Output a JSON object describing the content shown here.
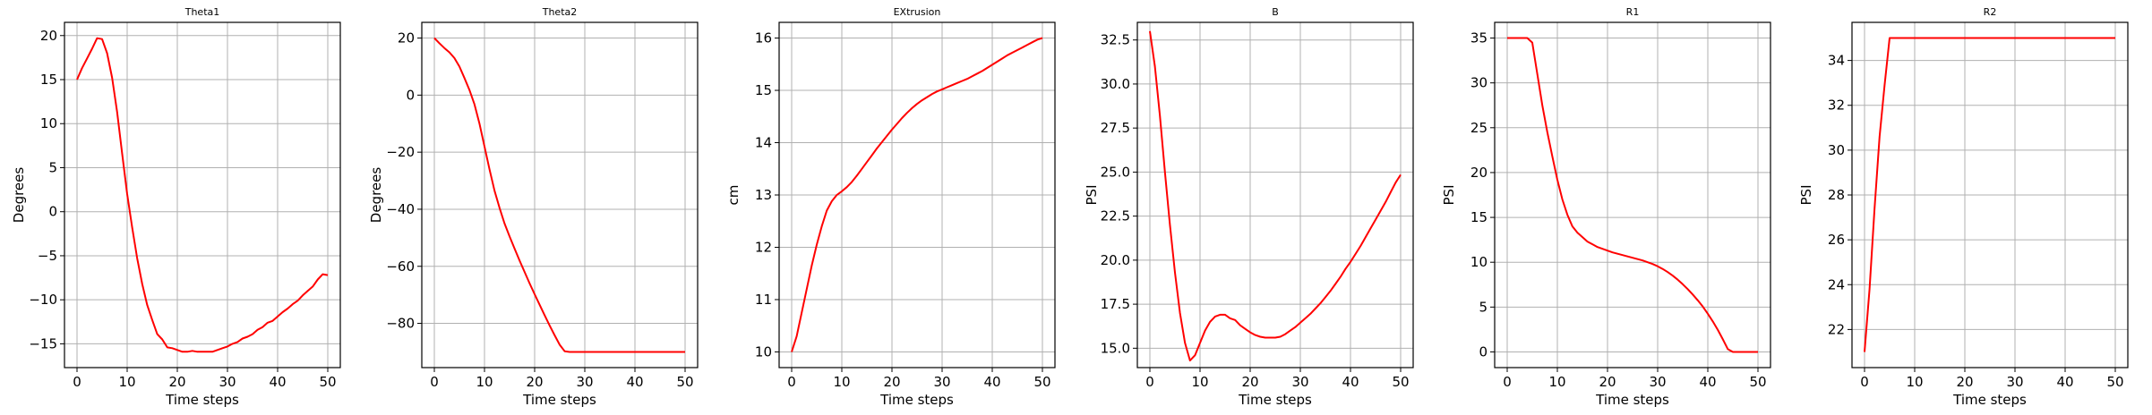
{
  "figure": {
    "line_color": "#ff0000",
    "grid_color": "#b0b0b0"
  },
  "chart_data": [
    {
      "type": "line",
      "title": "Theta1",
      "xlabel": "Time steps",
      "ylabel": "Degrees",
      "xlim": [
        -2.5,
        52.5
      ],
      "ylim": [
        -17.7,
        21.5
      ],
      "xticks": [
        0,
        10,
        20,
        30,
        40,
        50
      ],
      "yticks": [
        -15,
        -10,
        -5,
        0,
        5,
        10,
        15,
        20
      ],
      "grid": true,
      "series": [
        {
          "x": [
            0,
            1,
            2,
            3,
            4,
            5,
            6,
            7,
            8,
            9,
            10,
            11,
            12,
            13,
            14,
            15,
            16,
            17,
            18,
            19,
            20,
            21,
            22,
            23,
            24,
            25,
            26,
            27,
            28,
            29,
            30,
            31,
            32,
            33,
            34,
            35,
            36,
            37,
            38,
            39,
            40,
            41,
            42,
            43,
            44,
            45,
            46,
            47,
            48,
            49,
            50
          ],
          "y": [
            15,
            16.3,
            17.4,
            18.5,
            19.7,
            19.6,
            18.0,
            15.2,
            11.3,
            6.6,
            2.0,
            -1.8,
            -5.3,
            -8.2,
            -10.6,
            -12.3,
            -13.9,
            -14.5,
            -15.4,
            -15.5,
            -15.7,
            -15.9,
            -15.9,
            -15.8,
            -15.9,
            -15.9,
            -15.9,
            -15.9,
            -15.7,
            -15.5,
            -15.3,
            -15.0,
            -14.8,
            -14.4,
            -14.2,
            -13.9,
            -13.4,
            -13.1,
            -12.6,
            -12.4,
            -11.9,
            -11.4,
            -11.0,
            -10.5,
            -10.1,
            -9.5,
            -9.0,
            -8.5,
            -7.7,
            -7.1,
            -7.2
          ]
        }
      ]
    },
    {
      "type": "line",
      "title": "Theta2",
      "xlabel": "Time steps",
      "ylabel": "Degrees",
      "xlim": [
        -2.5,
        52.5
      ],
      "ylim": [
        -95.5,
        25.5
      ],
      "xticks": [
        0,
        10,
        20,
        30,
        40,
        50
      ],
      "yticks": [
        -80,
        -60,
        -40,
        -20,
        0,
        20
      ],
      "grid": true,
      "series": [
        {
          "x": [
            0,
            1,
            2,
            3,
            4,
            5,
            6,
            7,
            8,
            9,
            10,
            11,
            12,
            13,
            14,
            15,
            16,
            17,
            18,
            19,
            20,
            21,
            22,
            23,
            24,
            25,
            26,
            27,
            28,
            29,
            30,
            31,
            32,
            33,
            34,
            35,
            36,
            37,
            38,
            39,
            40,
            41,
            42,
            43,
            44,
            45,
            46,
            47,
            48,
            49,
            50
          ],
          "y": [
            20,
            18.2,
            16.5,
            15.0,
            13.0,
            10.0,
            6.0,
            1.8,
            -3.2,
            -10.0,
            -18.0,
            -26.0,
            -33.5,
            -39.5,
            -45.0,
            -49.5,
            -53.8,
            -58.0,
            -62.0,
            -66.0,
            -69.8,
            -73.5,
            -77.2,
            -80.8,
            -84.2,
            -87.5,
            -89.8,
            -90,
            -90,
            -90,
            -90,
            -90,
            -90,
            -90,
            -90,
            -90,
            -90,
            -90,
            -90,
            -90,
            -90,
            -90,
            -90,
            -90,
            -90,
            -90,
            -90,
            -90,
            -90,
            -90,
            -90
          ]
        }
      ]
    },
    {
      "type": "line",
      "title": "EXtrusion",
      "xlabel": "Time steps",
      "ylabel": "cm",
      "xlim": [
        -2.5,
        52.5
      ],
      "ylim": [
        9.7,
        16.3
      ],
      "xticks": [
        0,
        10,
        20,
        30,
        40,
        50
      ],
      "yticks": [
        10,
        11,
        12,
        13,
        14,
        15,
        16
      ],
      "grid": true,
      "series": [
        {
          "x": [
            0,
            1,
            2,
            3,
            4,
            5,
            6,
            7,
            8,
            9,
            10,
            11,
            12,
            13,
            14,
            15,
            16,
            17,
            18,
            19,
            20,
            21,
            22,
            23,
            24,
            25,
            26,
            27,
            28,
            29,
            30,
            31,
            32,
            33,
            34,
            35,
            36,
            37,
            38,
            39,
            40,
            41,
            42,
            43,
            44,
            45,
            46,
            47,
            48,
            49,
            50
          ],
          "y": [
            10.0,
            10.3,
            10.75,
            11.2,
            11.65,
            12.05,
            12.4,
            12.7,
            12.88,
            13.0,
            13.07,
            13.15,
            13.25,
            13.37,
            13.5,
            13.63,
            13.76,
            13.89,
            14.01,
            14.13,
            14.25,
            14.36,
            14.47,
            14.57,
            14.66,
            14.74,
            14.81,
            14.87,
            14.93,
            14.98,
            15.02,
            15.06,
            15.1,
            15.14,
            15.18,
            15.22,
            15.27,
            15.32,
            15.37,
            15.43,
            15.49,
            15.55,
            15.61,
            15.67,
            15.72,
            15.77,
            15.82,
            15.87,
            15.92,
            15.97,
            16.0
          ]
        }
      ]
    },
    {
      "type": "line",
      "title": "B",
      "xlabel": "Time steps",
      "ylabel": "PSI",
      "xlim": [
        -2.5,
        52.5
      ],
      "ylim": [
        13.9,
        33.5
      ],
      "xticks": [
        0,
        10,
        20,
        30,
        40,
        50
      ],
      "yticks": [
        15.0,
        17.5,
        20.0,
        22.5,
        25.0,
        27.5,
        30.0,
        32.5
      ],
      "grid": true,
      "series": [
        {
          "x": [
            0,
            1,
            2,
            3,
            4,
            5,
            6,
            7,
            8,
            9,
            10,
            11,
            12,
            13,
            14,
            15,
            16,
            17,
            18,
            19,
            20,
            21,
            22,
            23,
            24,
            25,
            26,
            27,
            28,
            29,
            30,
            31,
            32,
            33,
            34,
            35,
            36,
            37,
            38,
            39,
            40,
            41,
            42,
            43,
            44,
            45,
            46,
            47,
            48,
            49,
            50
          ],
          "y": [
            33.0,
            31.0,
            28.2,
            25.0,
            22.0,
            19.3,
            17.0,
            15.3,
            14.3,
            14.6,
            15.3,
            16.0,
            16.5,
            16.8,
            16.9,
            16.9,
            16.7,
            16.6,
            16.3,
            16.1,
            15.9,
            15.75,
            15.65,
            15.6,
            15.6,
            15.6,
            15.65,
            15.8,
            16.0,
            16.2,
            16.45,
            16.7,
            16.95,
            17.25,
            17.55,
            17.9,
            18.25,
            18.65,
            19.05,
            19.5,
            19.9,
            20.35,
            20.8,
            21.3,
            21.8,
            22.3,
            22.8,
            23.3,
            23.85,
            24.4,
            24.85
          ]
        }
      ]
    },
    {
      "type": "line",
      "title": "R1",
      "xlabel": "Time steps",
      "ylabel": "PSI",
      "xlim": [
        -2.5,
        52.5
      ],
      "ylim": [
        -1.75,
        36.75
      ],
      "xticks": [
        0,
        10,
        20,
        30,
        40,
        50
      ],
      "yticks": [
        0,
        5,
        10,
        15,
        20,
        25,
        30,
        35
      ],
      "grid": true,
      "series": [
        {
          "x": [
            0,
            1,
            2,
            3,
            4,
            5,
            6,
            7,
            8,
            9,
            10,
            11,
            12,
            13,
            14,
            15,
            16,
            17,
            18,
            19,
            20,
            21,
            22,
            23,
            24,
            25,
            26,
            27,
            28,
            29,
            30,
            31,
            32,
            33,
            34,
            35,
            36,
            37,
            38,
            39,
            40,
            41,
            42,
            43,
            44,
            45,
            46,
            47,
            48,
            49,
            50
          ],
          "y": [
            35,
            35,
            35,
            35,
            35,
            34.5,
            31.0,
            27.5,
            24.5,
            21.8,
            19.2,
            17.0,
            15.3,
            14.0,
            13.3,
            12.8,
            12.3,
            12.0,
            11.7,
            11.5,
            11.3,
            11.1,
            10.95,
            10.8,
            10.65,
            10.5,
            10.35,
            10.2,
            10.0,
            9.8,
            9.55,
            9.25,
            8.9,
            8.5,
            8.05,
            7.55,
            7.0,
            6.4,
            5.75,
            5.05,
            4.25,
            3.4,
            2.45,
            1.4,
            0.3,
            0,
            0,
            0,
            0,
            0,
            0
          ]
        }
      ]
    },
    {
      "type": "line",
      "title": "R2",
      "xlabel": "Time steps",
      "ylabel": "PSI",
      "xlim": [
        -2.5,
        52.5
      ],
      "ylim": [
        20.3,
        35.7
      ],
      "xticks": [
        0,
        10,
        20,
        30,
        40,
        50
      ],
      "yticks": [
        22,
        24,
        26,
        28,
        30,
        32,
        34
      ],
      "grid": true,
      "series": [
        {
          "x": [
            0,
            1,
            2,
            3,
            4,
            5,
            6,
            7,
            8,
            9,
            10,
            11,
            12,
            13,
            14,
            15,
            16,
            17,
            18,
            19,
            20,
            21,
            22,
            23,
            24,
            25,
            26,
            27,
            28,
            29,
            30,
            31,
            32,
            33,
            34,
            35,
            36,
            37,
            38,
            39,
            40,
            41,
            42,
            43,
            44,
            45,
            46,
            47,
            48,
            49,
            50
          ],
          "y": [
            21.0,
            23.8,
            27.4,
            30.6,
            32.9,
            35,
            35,
            35,
            35,
            35,
            35,
            35,
            35,
            35,
            35,
            35,
            35,
            35,
            35,
            35,
            35,
            35,
            35,
            35,
            35,
            35,
            35,
            35,
            35,
            35,
            35,
            35,
            35,
            35,
            35,
            35,
            35,
            35,
            35,
            35,
            35,
            35,
            35,
            35,
            35,
            35,
            35,
            35,
            35,
            35,
            35
          ]
        }
      ]
    }
  ]
}
